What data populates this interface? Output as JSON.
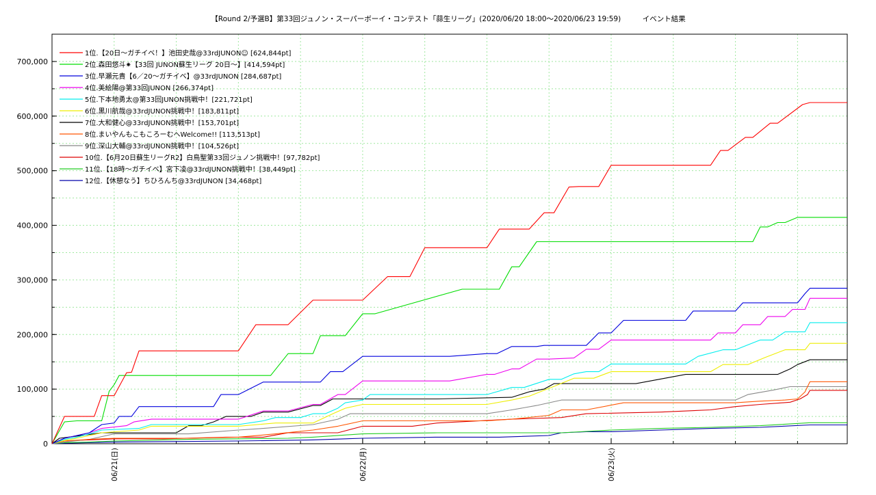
{
  "chart_data": {
    "type": "line",
    "title": "【Round 2/予選B】第33回ジュノン・スーパーボーイ・コンテスト「蒜生リーグ」(2020/06/20 18:00〜2020/06/23 19:59)　　　イベント結果",
    "xlabel": "",
    "ylabel": "",
    "xlim": [
      -0.25,
      2.95
    ],
    "ylim": [
      0,
      750000
    ],
    "yticks": [
      0,
      100000,
      200000,
      300000,
      400000,
      500000,
      600000,
      700000
    ],
    "ytick_labels": [
      "0",
      "100,000",
      "200,000",
      "300,000",
      "400,000",
      "500,000",
      "600,000",
      "700,000"
    ],
    "xticks": [
      0,
      1,
      2
    ],
    "xtick_labels": [
      "06/21(日)",
      "06/22(月)",
      "06/23(火)"
    ],
    "x_unit": "days from 2020/06/21 00:00",
    "grid": true,
    "legend_position": "top-left",
    "series": [
      {
        "name": "1位.【20日〜ガチイベ！】池田史哉@33rdJUNON☺ [624,844pt]",
        "color": "#ff0000",
        "x": [
          -0.25,
          -0.2,
          -0.17,
          -0.08,
          -0.05,
          -0.02,
          0.0,
          0.05,
          0.07,
          0.1,
          0.5,
          0.57,
          0.59,
          0.7,
          0.8,
          0.83,
          1.0,
          1.1,
          1.15,
          1.19,
          1.25,
          1.3,
          1.5,
          1.55,
          1.57,
          1.67,
          1.73,
          1.77,
          1.83,
          1.87,
          1.95,
          2.0,
          2.04,
          2.2,
          2.4,
          2.44,
          2.47,
          2.54,
          2.57,
          2.64,
          2.67,
          2.77,
          2.8,
          2.95
        ],
        "y": [
          0,
          50000,
          50000,
          50000,
          88000,
          88000,
          88000,
          130000,
          131000,
          170000,
          170000,
          218000,
          218000,
          218000,
          263000,
          263000,
          263000,
          306000,
          306000,
          306000,
          359000,
          359000,
          359000,
          393000,
          393000,
          393000,
          423000,
          423000,
          470000,
          471000,
          471000,
          510000,
          510000,
          510000,
          510000,
          537000,
          537000,
          561000,
          561000,
          587000,
          587000,
          621000,
          624844,
          624844
        ]
      },
      {
        "name": "2位.森田悠斗✷【33回 JUNON蘇生リーグ 20日〜】[414,594pt]",
        "color": "#00dd00",
        "x": [
          -0.25,
          -0.2,
          -0.15,
          -0.1,
          -0.08,
          -0.05,
          -0.02,
          0.0,
          0.02,
          0.6,
          0.63,
          0.7,
          0.74,
          0.8,
          0.83,
          0.9,
          0.93,
          1.0,
          1.05,
          1.4,
          1.5,
          1.55,
          1.6,
          1.63,
          1.7,
          2.2,
          2.4,
          2.57,
          2.6,
          2.63,
          2.67,
          2.7,
          2.75,
          2.95
        ],
        "y": [
          0,
          40000,
          42000,
          42000,
          42000,
          42000,
          96000,
          108000,
          125000,
          125000,
          125000,
          165000,
          165000,
          165000,
          198000,
          198000,
          198000,
          238000,
          238000,
          283000,
          283000,
          283000,
          324000,
          324000,
          370000,
          370000,
          370000,
          370000,
          397000,
          397000,
          405000,
          405000,
          414594,
          414594
        ]
      },
      {
        "name": "3位.早瀬元貴【6／20〜ガチイベ】@33rdJUNON [284,687pt]",
        "color": "#0000dd",
        "x": [
          -0.25,
          -0.2,
          -0.15,
          -0.1,
          -0.05,
          0.0,
          0.02,
          0.07,
          0.1,
          0.3,
          0.4,
          0.43,
          0.5,
          0.6,
          0.64,
          0.7,
          0.83,
          0.87,
          0.92,
          1.0,
          1.04,
          1.35,
          1.5,
          1.54,
          1.6,
          1.7,
          1.73,
          1.9,
          1.95,
          2.0,
          2.05,
          2.3,
          2.33,
          2.5,
          2.53,
          2.68,
          2.75,
          2.78,
          2.8,
          2.95
        ],
        "y": [
          0,
          10000,
          15000,
          20000,
          35000,
          38000,
          50000,
          50000,
          68000,
          68000,
          68000,
          90000,
          90000,
          113000,
          113000,
          113000,
          113000,
          132000,
          132000,
          160000,
          160000,
          160000,
          165000,
          165000,
          178000,
          178000,
          180000,
          180000,
          203000,
          203000,
          226000,
          226000,
          243000,
          243000,
          258000,
          258000,
          258000,
          275000,
          284687,
          284687
        ]
      },
      {
        "name": "4位.美絵陽@第33回JUNON [266,374pt]",
        "color": "#ee00ee",
        "x": [
          -0.25,
          -0.2,
          -0.15,
          -0.1,
          -0.05,
          0.05,
          0.08,
          0.15,
          0.5,
          0.6,
          0.63,
          0.7,
          0.8,
          0.83,
          0.9,
          0.93,
          1.0,
          1.3,
          1.35,
          1.5,
          1.53,
          1.6,
          1.63,
          1.7,
          1.75,
          1.85,
          1.9,
          1.95,
          2.0,
          2.05,
          2.2,
          2.4,
          2.43,
          2.5,
          2.53,
          2.6,
          2.63,
          2.7,
          2.73,
          2.78,
          2.8,
          2.95
        ],
        "y": [
          0,
          10000,
          15000,
          20000,
          28000,
          33000,
          40000,
          45000,
          45000,
          60000,
          60000,
          60000,
          72000,
          72000,
          90000,
          90000,
          115000,
          115000,
          115000,
          127000,
          127000,
          137000,
          137000,
          155000,
          155000,
          157000,
          173000,
          173000,
          190000,
          190000,
          190000,
          190000,
          203000,
          203000,
          218000,
          218000,
          233000,
          233000,
          246000,
          246000,
          266374,
          266374
        ]
      },
      {
        "name": "5位.下本地勇太@第33回JUNON挑戦中！[221,721pt]",
        "color": "#00eeee",
        "x": [
          -0.25,
          -0.2,
          -0.15,
          -0.1,
          -0.05,
          0.1,
          0.15,
          0.5,
          0.6,
          0.65,
          0.75,
          0.8,
          0.85,
          0.9,
          0.93,
          1.0,
          1.03,
          1.5,
          1.6,
          1.65,
          1.75,
          1.8,
          1.85,
          1.9,
          1.95,
          2.0,
          2.05,
          2.3,
          2.35,
          2.45,
          2.5,
          2.6,
          2.65,
          2.7,
          2.78,
          2.8,
          2.95
        ],
        "y": [
          0,
          8000,
          12000,
          18000,
          25000,
          28000,
          35000,
          35000,
          42000,
          48000,
          48000,
          55000,
          55000,
          65000,
          75000,
          80000,
          90000,
          90000,
          103000,
          103000,
          118000,
          118000,
          128000,
          132000,
          132000,
          146000,
          146000,
          146000,
          160000,
          172000,
          172000,
          190000,
          190000,
          205000,
          205000,
          221721,
          221721
        ]
      },
      {
        "name": "6位.黒川航哉@33rdJUNON挑戦中！[183,811pt]",
        "color": "#eeee00",
        "x": [
          -0.25,
          -0.2,
          -0.15,
          -0.1,
          -0.05,
          0.1,
          0.15,
          0.5,
          0.65,
          0.8,
          0.88,
          0.93,
          1.0,
          1.5,
          1.6,
          1.67,
          1.73,
          1.77,
          1.85,
          1.93,
          2.0,
          2.1,
          2.4,
          2.45,
          2.55,
          2.62,
          2.7,
          2.78,
          2.8,
          2.95
        ],
        "y": [
          0,
          6000,
          10000,
          15000,
          20000,
          25000,
          32000,
          32000,
          38000,
          38000,
          55000,
          65000,
          72000,
          72000,
          80000,
          87000,
          98000,
          105000,
          120000,
          120000,
          132000,
          132000,
          132000,
          145000,
          145000,
          158000,
          172000,
          172000,
          183811,
          183811
        ]
      },
      {
        "name": "7位.大和健心@33rdJUNON挑戦中！[153,701pt]",
        "color": "#000000",
        "x": [
          -0.25,
          -0.22,
          -0.15,
          -0.1,
          -0.05,
          0.0,
          0.05,
          0.25,
          0.3,
          0.35,
          0.4,
          0.45,
          0.55,
          0.6,
          0.65,
          0.7,
          0.8,
          0.83,
          0.88,
          0.92,
          0.95,
          1.0,
          1.3,
          1.6,
          1.67,
          1.73,
          1.77,
          1.8,
          1.85,
          2.1,
          2.3,
          2.5,
          2.55,
          2.67,
          2.72,
          2.75,
          2.8,
          2.95
        ],
        "y": [
          0,
          10000,
          14000,
          17000,
          20000,
          20000,
          20000,
          20000,
          33000,
          33000,
          40000,
          50000,
          50000,
          58000,
          58000,
          58000,
          70000,
          70000,
          82000,
          82000,
          82000,
          82000,
          82000,
          85000,
          95000,
          100000,
          110000,
          110000,
          110000,
          110000,
          127000,
          127000,
          127000,
          127000,
          137000,
          145000,
          153701,
          153701
        ]
      },
      {
        "name": "8位.まいやんもこもころーむへWelcome!! [113,513pt]",
        "color": "#ff5500",
        "x": [
          -0.25,
          -0.2,
          -0.1,
          0.0,
          0.3,
          0.5,
          0.65,
          0.8,
          0.9,
          1.0,
          1.2,
          1.5,
          1.6,
          1.75,
          1.8,
          1.9,
          2.05,
          2.15,
          2.4,
          2.5,
          2.6,
          2.7,
          2.75,
          2.78,
          2.8,
          2.95
        ],
        "y": [
          0,
          5000,
          8000,
          10000,
          10000,
          12000,
          18000,
          25000,
          32000,
          42000,
          42000,
          42000,
          45000,
          52000,
          62000,
          62000,
          75000,
          75000,
          75000,
          75000,
          78000,
          80000,
          82000,
          95000,
          113513,
          113513
        ]
      },
      {
        "name": "9位.深山大輔@33rdJUNON挑戦中！[104,526pt]",
        "color": "#888888",
        "x": [
          -0.25,
          -0.2,
          -0.1,
          0.0,
          0.3,
          0.5,
          0.6,
          0.8,
          0.9,
          0.95,
          1.0,
          1.5,
          1.6,
          1.7,
          1.8,
          2.0,
          2.5,
          2.55,
          2.65,
          2.72,
          2.8,
          2.95
        ],
        "y": [
          0,
          3000,
          8000,
          18000,
          18000,
          25000,
          28000,
          35000,
          45000,
          55000,
          55000,
          55000,
          62000,
          70000,
          80000,
          80000,
          80000,
          90000,
          98000,
          104526,
          104526,
          104526
        ]
      },
      {
        "name": "10位.【6月20日蘇生リーグR2】白鳥聖第33回ジュノン挑戦中！[97,782pt]",
        "color": "#dd0000",
        "x": [
          -0.25,
          -0.2,
          -0.1,
          0.0,
          0.2,
          0.45,
          0.6,
          0.7,
          0.9,
          1.0,
          1.2,
          1.3,
          1.6,
          1.8,
          1.9,
          2.2,
          2.4,
          2.5,
          2.6,
          2.72,
          2.76,
          2.79,
          2.8,
          2.95
        ],
        "y": [
          0,
          5000,
          7000,
          9000,
          9000,
          12000,
          12000,
          20000,
          20000,
          32000,
          32000,
          38000,
          45000,
          48000,
          55000,
          58000,
          62000,
          68000,
          72000,
          76000,
          82000,
          90000,
          97782,
          97782
        ]
      },
      {
        "name": "11位.【18時〜ガチイベ】宮下凌@33rdJUNON挑戦中！[38,449pt]",
        "color": "#22cc22",
        "x": [
          -0.25,
          -0.2,
          -0.1,
          0.0,
          0.3,
          0.7,
          0.8,
          1.0,
          1.3,
          1.8,
          2.0,
          2.2,
          2.4,
          2.6,
          2.8,
          2.95
        ],
        "y": [
          0,
          2000,
          3000,
          5000,
          8000,
          10000,
          12000,
          18000,
          20000,
          20000,
          25000,
          28000,
          30000,
          33000,
          38449,
          38449
        ]
      },
      {
        "name": "12位.【休憩なう】ちひろんち@33rdJUNON [34,468pt]",
        "color": "#0000aa",
        "x": [
          -0.25,
          -0.2,
          0.0,
          0.5,
          0.8,
          1.0,
          1.3,
          1.55,
          1.75,
          1.8,
          1.9,
          2.0,
          2.2,
          2.4,
          2.6,
          2.8,
          2.95
        ],
        "y": [
          0,
          1000,
          3000,
          5000,
          7000,
          10000,
          12000,
          12000,
          15000,
          20000,
          22000,
          22000,
          25000,
          28000,
          30000,
          34468,
          34468
        ]
      }
    ]
  }
}
